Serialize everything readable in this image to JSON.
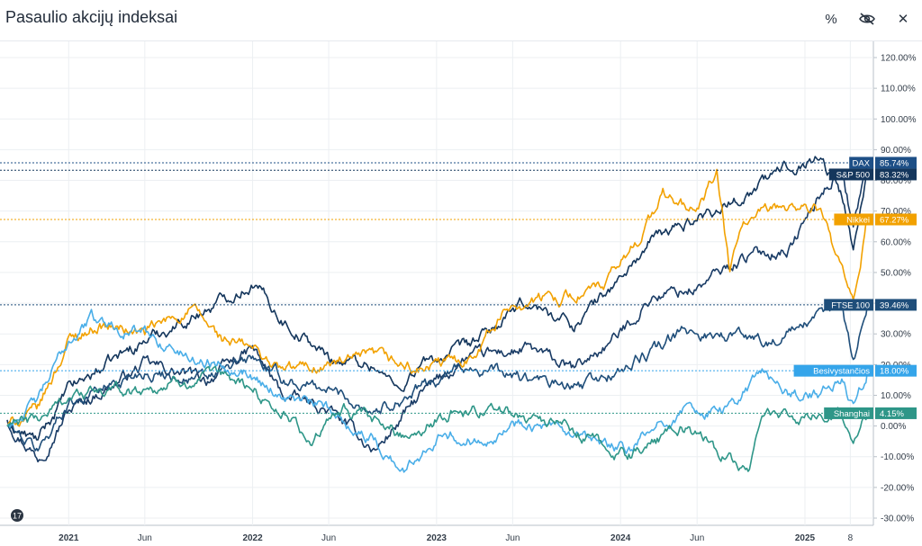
{
  "header": {
    "title": "Pasaulio akcijų indeksai",
    "icons": [
      "percent-icon",
      "hide-icon",
      "close-icon"
    ],
    "percent_glyph": "%",
    "close_glyph": "✕"
  },
  "chart_data": {
    "type": "line",
    "yunit": "%",
    "ylim": [
      -30,
      120
    ],
    "yticks": [
      "120.00%",
      "110.00%",
      "100.00%",
      "90.00%",
      "80.00%",
      "70.00%",
      "60.00%",
      "50.00%",
      "40.00%",
      "30.00%",
      "20.00%",
      "10.00%",
      "0.00%",
      "-10.00%",
      "-20.00%",
      "-30.00%"
    ],
    "xlim": [
      "2020-09-01",
      "2025-05-15"
    ],
    "xticks": [
      {
        "date": "2021-01-01",
        "label": "2021"
      },
      {
        "date": "2021-06-01",
        "label": "Jun"
      },
      {
        "date": "2022-01-01",
        "label": "2022"
      },
      {
        "date": "2022-06-01",
        "label": "Jun"
      },
      {
        "date": "2023-01-01",
        "label": "2023"
      },
      {
        "date": "2023-06-01",
        "label": "Jun"
      },
      {
        "date": "2024-01-01",
        "label": "2024"
      },
      {
        "date": "2024-06-01",
        "label": "Jun"
      },
      {
        "date": "2025-01-01",
        "label": "2025"
      },
      {
        "date": "2025-04-01",
        "label": "8"
      }
    ],
    "grid": true,
    "legend": "right-axis labels",
    "series": [
      {
        "name": "DAX",
        "last": "85.74%",
        "color": "#1a3c66",
        "tag_color": "#1d4f86",
        "points": [
          [
            "2020-09-01",
            2
          ],
          [
            "2020-11-01",
            -10
          ],
          [
            "2021-01-01",
            5
          ],
          [
            "2021-06-01",
            20
          ],
          [
            "2021-10-01",
            15
          ],
          [
            "2022-01-01",
            25
          ],
          [
            "2022-03-01",
            10
          ],
          [
            "2022-06-01",
            5
          ],
          [
            "2022-09-01",
            -8
          ],
          [
            "2022-12-01",
            10
          ],
          [
            "2023-03-01",
            22
          ],
          [
            "2023-07-01",
            25
          ],
          [
            "2023-10-01",
            18
          ],
          [
            "2024-01-01",
            30
          ],
          [
            "2024-03-01",
            42
          ],
          [
            "2024-06-01",
            45
          ],
          [
            "2024-09-01",
            55
          ],
          [
            "2024-12-01",
            58
          ],
          [
            "2025-02-01",
            75
          ],
          [
            "2025-03-15",
            85
          ],
          [
            "2025-04-07",
            65
          ],
          [
            "2025-05-05",
            85.74
          ]
        ]
      },
      {
        "name": "S&P 500",
        "last": "83.32%",
        "color": "#14365c",
        "tag_color": "#14365c",
        "points": [
          [
            "2020-09-01",
            0
          ],
          [
            "2020-11-01",
            -5
          ],
          [
            "2021-01-01",
            12
          ],
          [
            "2021-06-01",
            28
          ],
          [
            "2021-10-01",
            38
          ],
          [
            "2022-01-01",
            47
          ],
          [
            "2022-03-01",
            35
          ],
          [
            "2022-06-01",
            22
          ],
          [
            "2022-09-01",
            20
          ],
          [
            "2022-10-15",
            12
          ],
          [
            "2022-12-01",
            20
          ],
          [
            "2023-03-01",
            25
          ],
          [
            "2023-07-01",
            40
          ],
          [
            "2023-10-01",
            33
          ],
          [
            "2024-01-01",
            48
          ],
          [
            "2024-03-01",
            60
          ],
          [
            "2024-06-01",
            68
          ],
          [
            "2024-09-01",
            75
          ],
          [
            "2024-12-01",
            85
          ],
          [
            "2025-02-01",
            88
          ],
          [
            "2025-03-15",
            75
          ],
          [
            "2025-04-07",
            58
          ],
          [
            "2025-05-05",
            83.32
          ]
        ]
      },
      {
        "name": "Nikkei",
        "last": "67.27%",
        "color": "#f2a100",
        "tag_color": "#f2a100",
        "points": [
          [
            "2020-09-01",
            0
          ],
          [
            "2020-11-01",
            5
          ],
          [
            "2021-01-01",
            28
          ],
          [
            "2021-03-01",
            33
          ],
          [
            "2021-06-01",
            30
          ],
          [
            "2021-09-01",
            38
          ],
          [
            "2021-11-01",
            28
          ],
          [
            "2022-01-01",
            25
          ],
          [
            "2022-03-01",
            18
          ],
          [
            "2022-06-01",
            20
          ],
          [
            "2022-09-01",
            22
          ],
          [
            "2022-12-01",
            18
          ],
          [
            "2023-03-01",
            22
          ],
          [
            "2023-06-01",
            40
          ],
          [
            "2023-09-01",
            42
          ],
          [
            "2023-12-01",
            45
          ],
          [
            "2024-02-01",
            60
          ],
          [
            "2024-03-25",
            75
          ],
          [
            "2024-06-01",
            70
          ],
          [
            "2024-07-10",
            82
          ],
          [
            "2024-08-05",
            50
          ],
          [
            "2024-09-01",
            66
          ],
          [
            "2024-12-01",
            72
          ],
          [
            "2025-02-01",
            70
          ],
          [
            "2025-04-07",
            38
          ],
          [
            "2025-05-05",
            67.27
          ]
        ]
      },
      {
        "name": "FTSE 100",
        "last": "39.46%",
        "color": "#1f4e7a",
        "tag_color": "#1f4e7a",
        "points": [
          [
            "2020-09-01",
            0
          ],
          [
            "2020-11-01",
            -8
          ],
          [
            "2021-01-01",
            8
          ],
          [
            "2021-06-01",
            18
          ],
          [
            "2021-10-01",
            15
          ],
          [
            "2022-01-01",
            22
          ],
          [
            "2022-03-01",
            15
          ],
          [
            "2022-06-01",
            12
          ],
          [
            "2022-09-01",
            5
          ],
          [
            "2022-12-01",
            12
          ],
          [
            "2023-03-01",
            20
          ],
          [
            "2023-07-01",
            15
          ],
          [
            "2023-10-01",
            12
          ],
          [
            "2024-01-01",
            18
          ],
          [
            "2024-05-01",
            30
          ],
          [
            "2024-08-01",
            30
          ],
          [
            "2024-11-01",
            28
          ],
          [
            "2025-02-01",
            35
          ],
          [
            "2025-03-15",
            40
          ],
          [
            "2025-04-07",
            22
          ],
          [
            "2025-05-05",
            39.46
          ]
        ]
      },
      {
        "name": "Besivystančios",
        "last": "18.00%",
        "color": "#4aaee8",
        "tag_color": "#35a5ea",
        "points": [
          [
            "2020-09-01",
            0
          ],
          [
            "2020-11-01",
            8
          ],
          [
            "2021-01-01",
            28
          ],
          [
            "2021-02-15",
            35
          ],
          [
            "2021-06-01",
            30
          ],
          [
            "2021-09-01",
            22
          ],
          [
            "2021-12-01",
            20
          ],
          [
            "2022-03-01",
            10
          ],
          [
            "2022-06-01",
            5
          ],
          [
            "2022-09-01",
            -5
          ],
          [
            "2022-10-31",
            -15
          ],
          [
            "2023-01-15",
            0
          ],
          [
            "2023-03-01",
            -5
          ],
          [
            "2023-07-01",
            2
          ],
          [
            "2023-10-01",
            -5
          ],
          [
            "2024-01-15",
            -8
          ],
          [
            "2024-05-01",
            5
          ],
          [
            "2024-08-01",
            5
          ],
          [
            "2024-10-08",
            18
          ],
          [
            "2024-12-01",
            10
          ],
          [
            "2025-02-01",
            10
          ],
          [
            "2025-03-15",
            15
          ],
          [
            "2025-04-07",
            5
          ],
          [
            "2025-05-05",
            18.0
          ]
        ]
      },
      {
        "name": "Shanghai",
        "last": "4.15%",
        "color": "#2e9688",
        "tag_color": "#2e9688",
        "points": [
          [
            "2020-09-01",
            0
          ],
          [
            "2020-11-01",
            2
          ],
          [
            "2021-01-01",
            10
          ],
          [
            "2021-06-01",
            12
          ],
          [
            "2021-09-01",
            15
          ],
          [
            "2021-12-01",
            15
          ],
          [
            "2022-03-01",
            5
          ],
          [
            "2022-04-26",
            -5
          ],
          [
            "2022-07-01",
            5
          ],
          [
            "2022-10-31",
            -3
          ],
          [
            "2023-02-01",
            5
          ],
          [
            "2023-06-01",
            5
          ],
          [
            "2023-09-01",
            0
          ],
          [
            "2024-01-15",
            -10
          ],
          [
            "2024-05-01",
            0
          ],
          [
            "2024-09-13",
            -15
          ],
          [
            "2024-10-08",
            5
          ],
          [
            "2024-12-01",
            2
          ],
          [
            "2025-02-01",
            3
          ],
          [
            "2025-03-15",
            5
          ],
          [
            "2025-04-07",
            -3
          ],
          [
            "2025-05-05",
            4.15
          ]
        ]
      }
    ]
  }
}
